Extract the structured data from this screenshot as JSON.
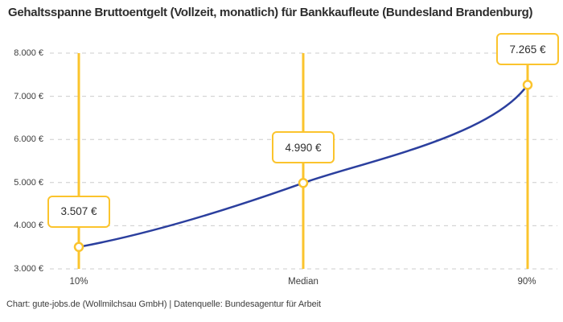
{
  "title": "Gehaltsspanne Bruttoentgelt (Vollzeit, monatlich) für Bankkaufleute (Bundesland Brandenburg)",
  "footer": "Chart: gute-jobs.de (Wollmilchsau GmbH) | Datenquelle: Bundesagentur für Arbeit",
  "colors": {
    "accent": "#FBC42D",
    "line": "#2B3F9E",
    "grid": "#CCCCCC",
    "text": "#2D2D2D",
    "background": "#FFFFFF"
  },
  "chart_data": {
    "type": "line",
    "title": "Gehaltsspanne Bruttoentgelt (Vollzeit, monatlich) für Bankkaufleute (Bundesland Brandenburg)",
    "x": [
      "10%",
      "Median",
      "90%"
    ],
    "values": [
      3507,
      4990,
      7265
    ],
    "point_labels": [
      "3.507 €",
      "4.990 €",
      "7.265 €"
    ],
    "yticks_top_to_bottom": [
      "8.000 €",
      "7.000 €",
      "6.000 €",
      "5.000 €",
      "4.000 €",
      "3.000 €"
    ],
    "ylim": [
      3000,
      8000
    ],
    "xlabel": "",
    "ylabel": "",
    "grid": true,
    "legend": false
  }
}
